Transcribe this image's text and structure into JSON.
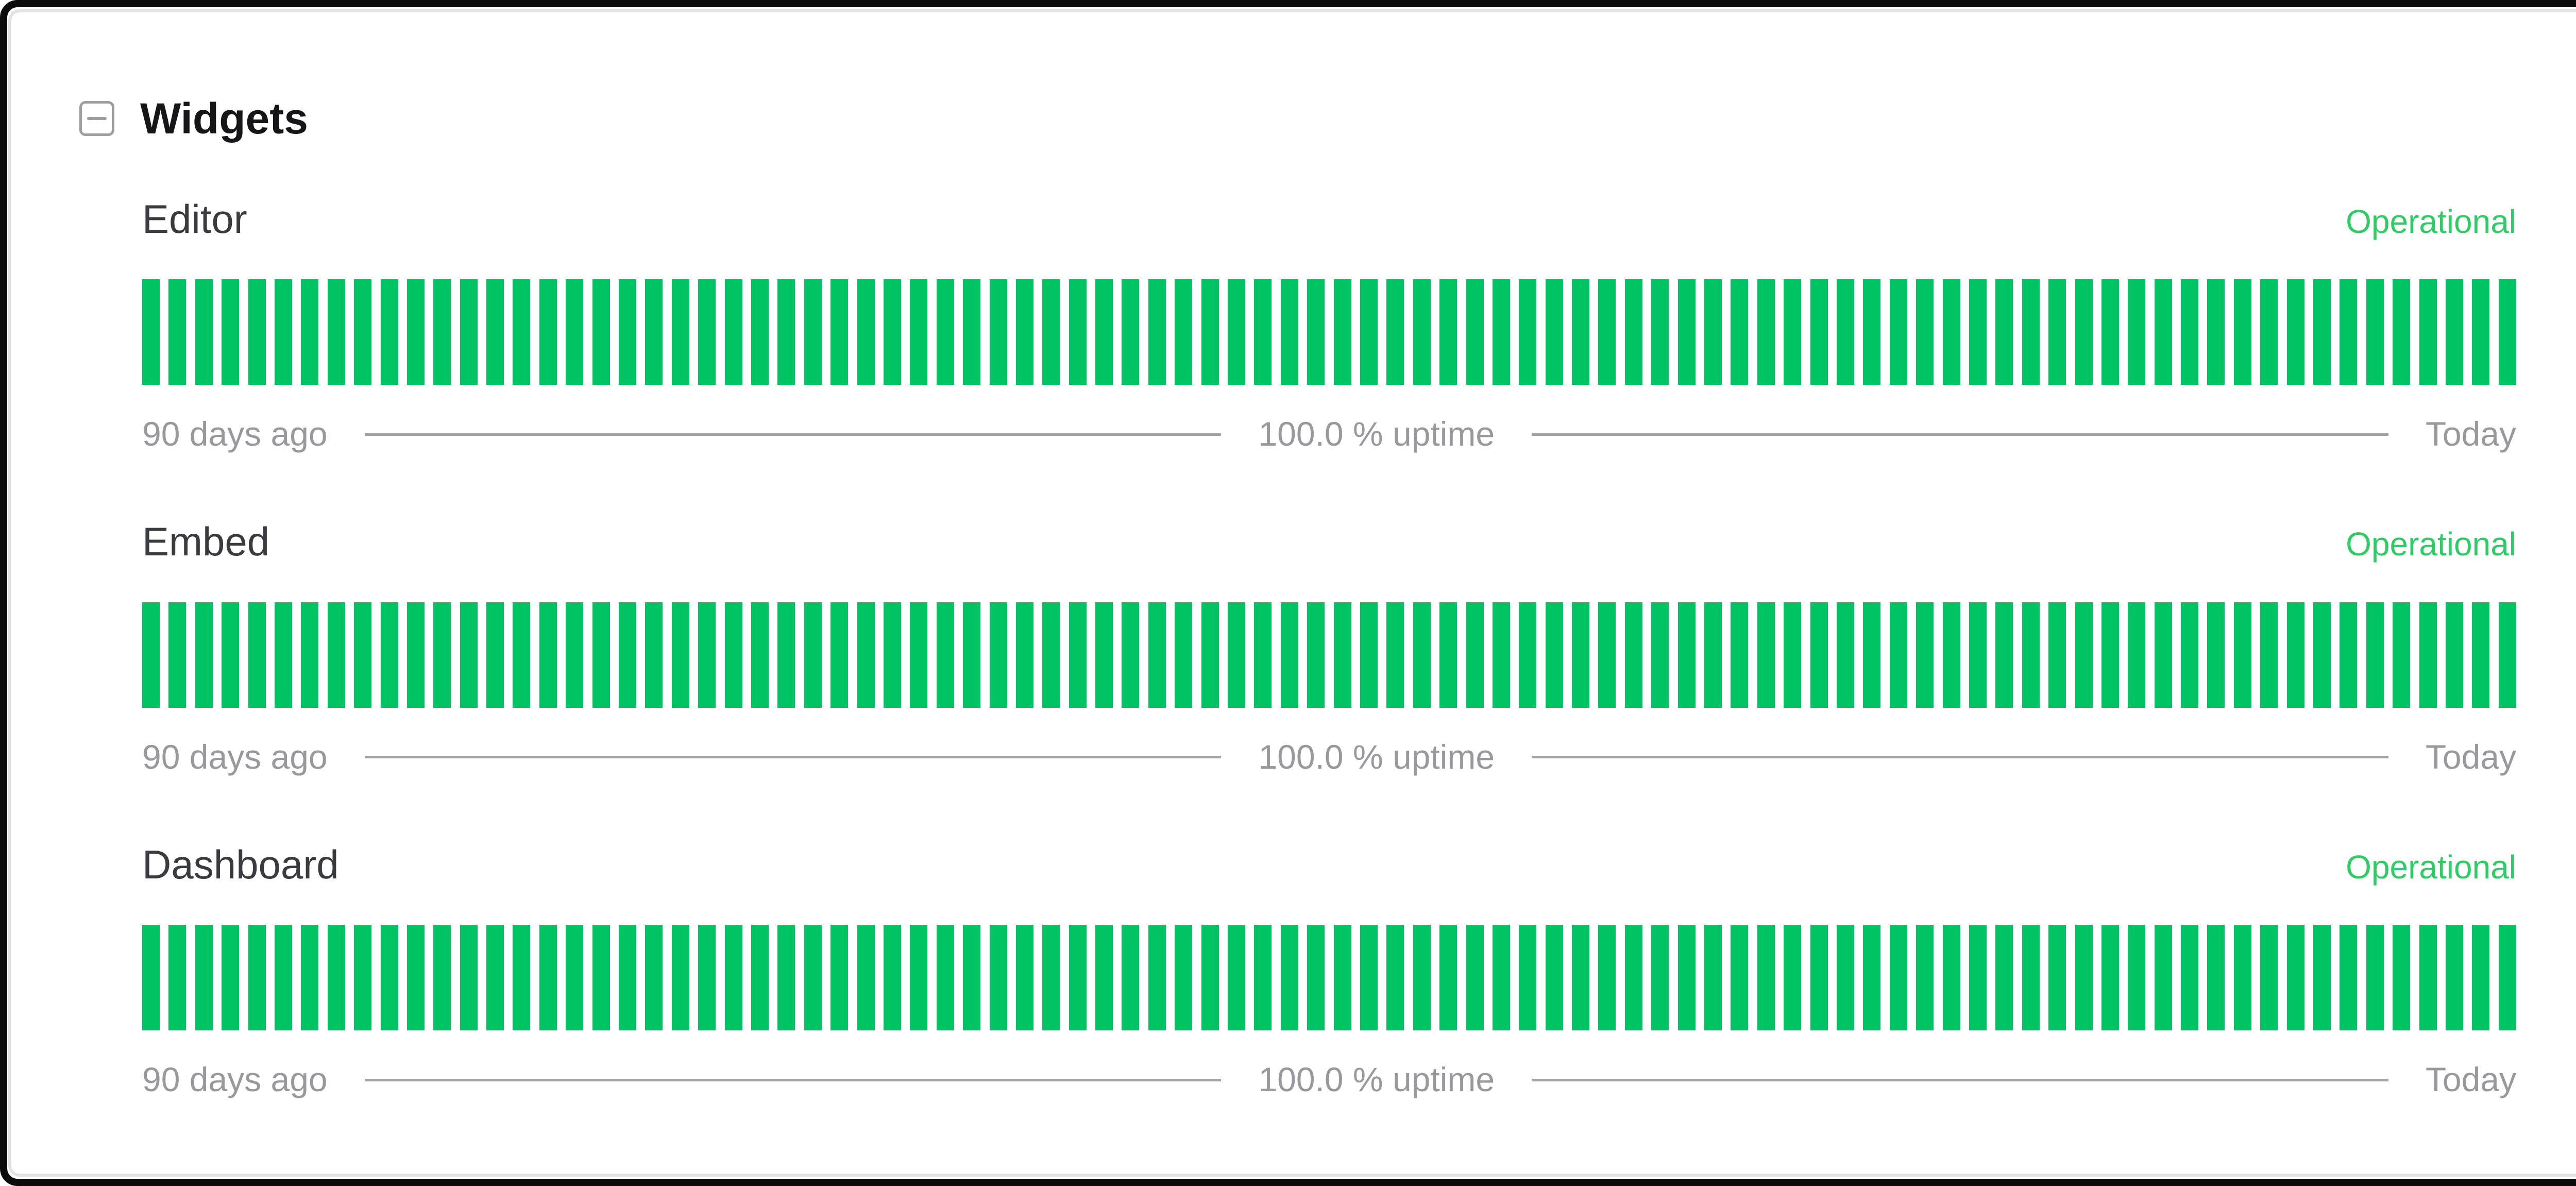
{
  "group": {
    "title": "Widgets",
    "collapse_icon": "minus-square"
  },
  "components": [
    {
      "name": "Editor",
      "status": "Operational",
      "start_label": "90 days ago",
      "uptime_label": "100.0 % uptime",
      "end_label": "Today",
      "bar_count": 90
    },
    {
      "name": "Embed",
      "status": "Operational",
      "start_label": "90 days ago",
      "uptime_label": "100.0 % uptime",
      "end_label": "Today",
      "bar_count": 90
    },
    {
      "name": "Dashboard",
      "status": "Operational",
      "start_label": "90 days ago",
      "uptime_label": "100.0 % uptime",
      "end_label": "Today",
      "bar_count": 90
    }
  ],
  "colors": {
    "frame_black": "#0a0a0a",
    "card_border_gray": "#e2e2e4",
    "title_black": "#161618",
    "name_gray": "#3a3b3e",
    "operational_green": "#2fcc66",
    "bar_green": "#00c463",
    "label_gray": "#98989d",
    "line_gray": "#a5a5a8",
    "icon_gray": "#9e9ea2"
  },
  "chart_data": [
    {
      "type": "bar",
      "title": "Editor uptime (90 days)",
      "days": 90,
      "uptime_percent": 100.0,
      "bar_status_all": "operational",
      "x_left_label": "90 days ago",
      "x_right_label": "Today"
    },
    {
      "type": "bar",
      "title": "Embed uptime (90 days)",
      "days": 90,
      "uptime_percent": 100.0,
      "bar_status_all": "operational",
      "x_left_label": "90 days ago",
      "x_right_label": "Today"
    },
    {
      "type": "bar",
      "title": "Dashboard uptime (90 days)",
      "days": 90,
      "uptime_percent": 100.0,
      "bar_status_all": "operational",
      "x_left_label": "90 days ago",
      "x_right_label": "Today"
    }
  ]
}
